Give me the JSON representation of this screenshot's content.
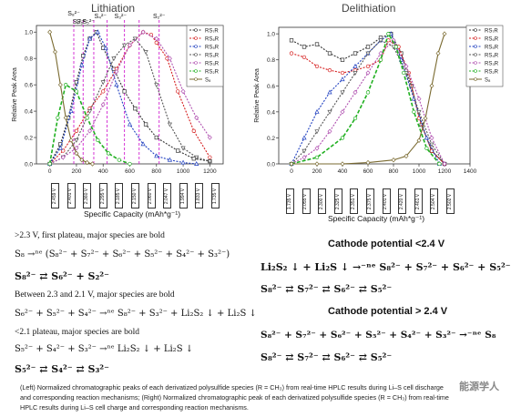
{
  "left_chart": {
    "title": "Lithiation",
    "ylabel": "Relative Peak Area",
    "xlabel": "Specific Capacity (mAh*g⁻¹)",
    "x_ticks": [
      "0",
      "200",
      "400",
      "600",
      "800",
      "1000",
      "1200"
    ],
    "y_ticks": [
      "0.0",
      "0.2",
      "0.4",
      "0.6",
      "0.8",
      "1.0"
    ],
    "peak_labels": [
      "S₈²⁻",
      "S₇²⁻",
      "S₆²⁻",
      "S₅²⁻",
      "S₄²⁻",
      "S₃²⁻",
      "S₂²⁻"
    ],
    "voltages": [
      "2.459 V",
      "2.401 V",
      "2.360 V",
      "2.295 V",
      "2.185 V",
      "2.150 V",
      "2.060 V",
      "2.047 V",
      "1.994 V",
      "1.833 V",
      "1.735 V"
    ],
    "legend": [
      "RS₇R",
      "RS₆R",
      "RS₅R",
      "RS₄R",
      "RS₃R",
      "RS₂R",
      "S₈"
    ]
  },
  "right_chart": {
    "title": "Delithiation",
    "ylabel": "Relative Peak Area",
    "xlabel": "Specific Capacity (mAh*g⁻¹)",
    "x_ticks": [
      "0",
      "200",
      "400",
      "600",
      "800",
      "1000",
      "1200",
      "1400"
    ],
    "y_ticks": [
      "0.0",
      "0.2",
      "0.4",
      "0.6",
      "0.8",
      "1.0"
    ],
    "voltages": [
      "1.735 V",
      "2.055 V",
      "2.300 V",
      "2.325 V",
      "2.351 V",
      "2.375 V",
      "2.401 V",
      "2.420 V",
      "2.461 V",
      "2.504 V",
      "2.502 V"
    ],
    "legend": [
      "RS₇R",
      "RS₆R",
      "RS₅R",
      "RS₄R",
      "RS₃R",
      "RS₂R",
      "S₈"
    ]
  },
  "chart_data": [
    {
      "type": "line",
      "title": "Lithiation",
      "xlabel": "Specific Capacity (mAh*g⁻¹)",
      "ylabel": "Relative Peak Area",
      "xlim": [
        -100,
        1300
      ],
      "ylim": [
        0,
        1.05
      ],
      "series": [
        {
          "name": "RS₇R",
          "color": "#333333",
          "x": [
            0,
            80,
            140,
            200,
            250,
            300,
            350,
            400,
            480,
            560,
            640,
            720,
            800,
            960,
            1080,
            1200
          ],
          "y": [
            0.0,
            0.15,
            0.35,
            0.62,
            0.82,
            0.95,
            1.0,
            0.88,
            0.72,
            0.55,
            0.42,
            0.3,
            0.2,
            0.1,
            0.04,
            0.02
          ]
        },
        {
          "name": "RS₆R",
          "color": "#d62020",
          "x": [
            0,
            100,
            200,
            300,
            400,
            500,
            600,
            700,
            760,
            800,
            880,
            960,
            1080,
            1200
          ],
          "y": [
            0.0,
            0.1,
            0.25,
            0.42,
            0.55,
            0.72,
            0.9,
            1.0,
            0.98,
            0.92,
            0.8,
            0.55,
            0.25,
            0.05
          ]
        },
        {
          "name": "RS₅R",
          "color": "#2040c0",
          "x": [
            0,
            80,
            160,
            240,
            300,
            360,
            420,
            500,
            600,
            700,
            800,
            900,
            1000,
            1100
          ],
          "y": [
            0.0,
            0.12,
            0.4,
            0.75,
            0.95,
            1.0,
            0.88,
            0.6,
            0.3,
            0.15,
            0.06,
            0.03,
            0.01,
            0.0
          ]
        },
        {
          "name": "RS₄R",
          "color": "#555555",
          "x": [
            0,
            100,
            200,
            300,
            400,
            480,
            560,
            640,
            720,
            800,
            900,
            1000,
            1100,
            1200
          ],
          "y": [
            0.0,
            0.05,
            0.18,
            0.4,
            0.62,
            0.8,
            0.9,
            0.95,
            0.85,
            0.6,
            0.3,
            0.12,
            0.05,
            0.02
          ]
        },
        {
          "name": "RS₃R",
          "color": "#b050b0",
          "x": [
            0,
            100,
            200,
            300,
            400,
            500,
            600,
            700,
            800,
            900,
            1000,
            1100,
            1200
          ],
          "y": [
            0.0,
            0.05,
            0.12,
            0.25,
            0.45,
            0.7,
            0.9,
            1.0,
            0.95,
            0.8,
            0.55,
            0.35,
            0.2
          ]
        },
        {
          "name": "RS₂R",
          "color": "#20b020",
          "x": [
            0,
            60,
            120,
            200,
            280,
            360,
            440,
            520,
            600
          ],
          "y": [
            0.0,
            0.35,
            0.6,
            0.55,
            0.35,
            0.18,
            0.08,
            0.03,
            0.0
          ]
        },
        {
          "name": "S₈",
          "color": "#7a6a30",
          "x": [
            0,
            40,
            80,
            120,
            160,
            200,
            240,
            280,
            320
          ],
          "y": [
            1.0,
            0.85,
            0.6,
            0.35,
            0.18,
            0.08,
            0.03,
            0.01,
            0.0
          ]
        }
      ]
    },
    {
      "type": "line",
      "title": "Delithiation",
      "xlabel": "Specific Capacity (mAh*g⁻¹)",
      "ylabel": "Relative Peak Area",
      "xlim": [
        -100,
        1400
      ],
      "ylim": [
        0,
        1.05
      ],
      "series": [
        {
          "name": "RS₇R",
          "color": "#333333",
          "x": [
            0,
            100,
            200,
            300,
            400,
            500,
            600,
            700,
            780,
            860,
            940,
            1020,
            1100,
            1200
          ],
          "y": [
            0.95,
            0.9,
            0.92,
            0.85,
            0.8,
            0.85,
            0.9,
            0.97,
            1.0,
            0.85,
            0.6,
            0.3,
            0.1,
            0.0
          ]
        },
        {
          "name": "RS₆R",
          "color": "#d62020",
          "x": [
            0,
            100,
            200,
            300,
            400,
            500,
            600,
            700,
            760,
            840,
            920,
            1000,
            1100,
            1200
          ],
          "y": [
            0.85,
            0.82,
            0.75,
            0.72,
            0.7,
            0.72,
            0.75,
            0.8,
            0.95,
            0.9,
            0.7,
            0.35,
            0.1,
            0.0
          ]
        },
        {
          "name": "RS₅R",
          "color": "#2040c0",
          "x": [
            0,
            100,
            200,
            300,
            400,
            500,
            600,
            700,
            780,
            860,
            960,
            1060,
            1160
          ],
          "y": [
            0.0,
            0.2,
            0.4,
            0.55,
            0.65,
            0.75,
            0.85,
            0.95,
            1.0,
            0.8,
            0.5,
            0.2,
            0.0
          ]
        },
        {
          "name": "RS₄R",
          "color": "#555555",
          "x": [
            0,
            100,
            200,
            300,
            400,
            500,
            600,
            700,
            800,
            900,
            1000,
            1100,
            1200
          ],
          "y": [
            0.0,
            0.1,
            0.25,
            0.4,
            0.55,
            0.7,
            0.85,
            0.95,
            0.9,
            0.7,
            0.4,
            0.15,
            0.0
          ]
        },
        {
          "name": "RS₃R",
          "color": "#b050b0",
          "x": [
            0,
            100,
            200,
            300,
            400,
            500,
            600,
            700,
            800,
            900,
            1000,
            1100,
            1200
          ],
          "y": [
            0.0,
            0.05,
            0.12,
            0.25,
            0.4,
            0.55,
            0.7,
            0.85,
            0.95,
            0.75,
            0.5,
            0.2,
            0.0
          ]
        },
        {
          "name": "RS₂R",
          "color": "#20b020",
          "x": [
            0,
            200,
            400,
            500,
            600,
            700,
            760,
            820,
            880,
            960,
            1060,
            1160
          ],
          "y": [
            0.0,
            0.05,
            0.2,
            0.35,
            0.55,
            0.8,
            1.0,
            0.9,
            0.7,
            0.4,
            0.12,
            0.0
          ]
        },
        {
          "name": "S₈",
          "color": "#7a6a30",
          "x": [
            0,
            200,
            400,
            600,
            800,
            900,
            1000,
            1050,
            1100,
            1150,
            1200
          ],
          "y": [
            0.0,
            0.0,
            0.0,
            0.01,
            0.03,
            0.06,
            0.18,
            0.35,
            0.6,
            0.85,
            1.0
          ]
        }
      ]
    }
  ],
  "left_text": {
    "line1_prefix": ">2.3 V, first plateau, major species are bold",
    "eq1": "S₈ →ⁿᵉ (S₈²⁻ + S₇²⁻ + S₆²⁻ + S₅²⁻ + S₄²⁻ + S₃²⁻)",
    "eq2": "S₈²⁻ ⇄ S₆²⁻ + S₂²⁻",
    "line2": "Between 2.3 and 2.1 V, major species are bold",
    "eq3": "S₆²⁻ + S₅²⁻ + S₄²⁻ →ⁿᵉ S₈²⁻ + S₃²⁻ + Li₂S₂ ↓ + Li₂S ↓",
    "line3": "<2.1 plateau, major species are bold",
    "eq4": "S₅²⁻ + S₄²⁻ + S₃²⁻ →ⁿᵉ Li₂S₂ ↓ + Li₂S ↓",
    "eq5": "S₅²⁻ ⇄ S₄²⁻ ⇄ S₃²⁻"
  },
  "right_text": {
    "heading1": "Cathode potential <2.4 V",
    "eq1": "Li₂S₂ ↓ + Li₂S ↓ →⁻ⁿᵉ S₈²⁻ + S₇²⁻ + S₆²⁻ + S₅²⁻",
    "eq2": "S₈²⁻ ⇄ S₇²⁻ ⇄ S₆²⁻ ⇄ S₅²⁻",
    "heading2": "Cathode potential > 2.4 V",
    "eq3": "S₈²⁻ + S₇²⁻ + S₆²⁻ + S₅²⁻ + S₄²⁻ + S₃²⁻ →⁻ⁿᵉ S₈",
    "eq4": "S₈²⁻ ⇄ S₇²⁻ ⇄ S₆²⁻ ⇄ S₅²⁻"
  },
  "caption": {
    "line1": "(Left) Normalized chromatographic peaks of each derivatized polysulfide species (R = CH₃) from real-time HPLC results during Li–S cell discharge",
    "line2": "and corresponding reaction mechanisms; (Right) Normalized chromatographic peak of each derivatized polysulfide species (R = CH₃) from real-time",
    "line3": "HPLC results during Li–S cell charge and corresponding reaction mechanisms."
  },
  "watermark": "能源学人"
}
